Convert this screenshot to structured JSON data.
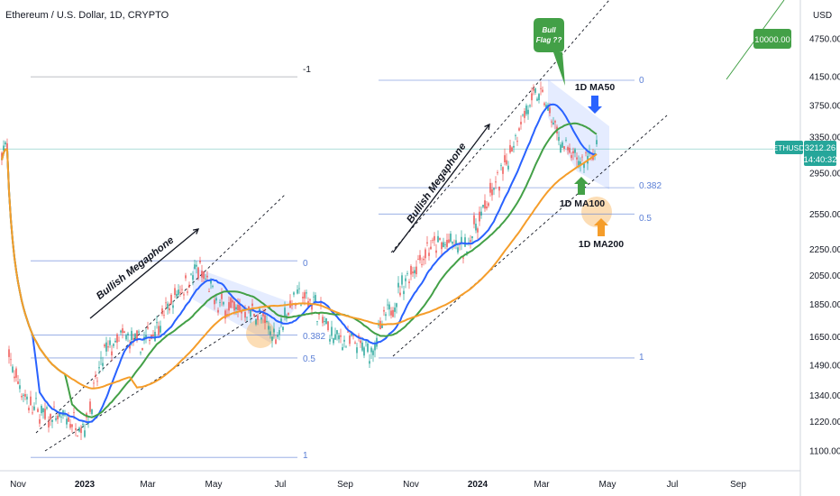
{
  "header": {
    "title": "Ethereum / U.S. Dollar, 1D, CRYPTO"
  },
  "price_axis": {
    "unit_label": "USD",
    "symbol": "ETHUSD",
    "last_price": "3212.26",
    "countdown": "14:40:32",
    "target_price": "10000.00"
  },
  "annotations": {
    "megaphone_left": "Bullish Megaphone",
    "megaphone_right": "Bullish Megaphone",
    "bull_flag_line1": "Bull",
    "bull_flag_line2": "Flag ??",
    "ma50_label": "1D MA50",
    "ma100_label": "1D MA100",
    "ma200_label": "1D MA200"
  },
  "fib_left": {
    "level_minus1": "-1",
    "level_0": "0",
    "level_0382": "0.382",
    "level_05": "0.5",
    "level_1": "1"
  },
  "fib_right": {
    "level_0": "0",
    "level_0382": "0.382",
    "level_05": "0.5",
    "level_1": "1"
  },
  "colors": {
    "candle_up": "#26a69a",
    "candle_down": "#ef5350",
    "ma50": "#2962ff",
    "ma100": "#43a047",
    "ma200": "#f59d2a",
    "fib": "#5b7fd6",
    "accent_green": "#43a047"
  },
  "chart_data": {
    "type": "candlestick",
    "symbol": "ETHUSD",
    "title": "Ethereum / U.S. Dollar, 1D, CRYPTO",
    "y_axis": {
      "scale": "log",
      "unit": "USD",
      "ticks": [
        1100,
        1220,
        1340,
        1490,
        1650,
        1850,
        2050,
        2250,
        2550,
        2950,
        3350,
        3750,
        4150,
        4750
      ]
    },
    "x_axis": {
      "ticks": [
        "Nov",
        "2023",
        "Mar",
        "May",
        "Jul",
        "Sep",
        "Nov",
        "2024",
        "Mar",
        "May",
        "Jul",
        "Sep"
      ]
    },
    "price_path": [
      [
        "Nov",
        1520
      ],
      [
        "Nov",
        1300
      ],
      [
        "Dec",
        1240
      ],
      [
        "Dec",
        1230
      ],
      [
        "2023",
        1200
      ],
      [
        "Jan",
        1550
      ],
      [
        "Feb",
        1650
      ],
      [
        "Mar",
        1600
      ],
      [
        "Mar",
        1750
      ],
      [
        "Apr",
        1950
      ],
      [
        "Apr",
        2100
      ],
      [
        "May",
        1850
      ],
      [
        "May",
        1820
      ],
      [
        "Jun",
        1800
      ],
      [
        "Jun",
        1650
      ],
      [
        "Jul",
        1900
      ],
      [
        "Jul",
        1880
      ],
      [
        "Aug",
        1650
      ],
      [
        "Sep",
        1620
      ],
      [
        "Oct",
        1560
      ],
      [
        "Oct",
        1800
      ],
      [
        "Nov",
        2050
      ],
      [
        "Dec",
        2250
      ],
      [
        "2024",
        2300
      ],
      [
        "Jan",
        2250
      ],
      [
        "Feb",
        2600
      ],
      [
        "Feb",
        2950
      ],
      [
        "Mar",
        3600
      ],
      [
        "Mar",
        3950
      ],
      [
        "Apr",
        3300
      ],
      [
        "Apr",
        3050
      ],
      [
        "May",
        3212
      ]
    ],
    "moving_averages": [
      {
        "name": "1D MA50",
        "color": "#2962ff"
      },
      {
        "name": "1D MA100",
        "color": "#43a047"
      },
      {
        "name": "1D MA200",
        "color": "#f59d2a"
      }
    ],
    "fib_levels_left": [
      {
        "label": "-1",
        "price": 4150
      },
      {
        "label": "0",
        "price": 2160
      },
      {
        "label": "0.382",
        "price": 1660
      },
      {
        "label": "0.5",
        "price": 1530
      },
      {
        "label": "1",
        "price": 1075
      }
    ],
    "fib_levels_right": [
      {
        "label": "0",
        "price": 4100
      },
      {
        "label": "0.382",
        "price": 2800
      },
      {
        "label": "0.5",
        "price": 2550
      },
      {
        "label": "1",
        "price": 1530
      }
    ],
    "last_price": 3212.26,
    "target": 10000
  }
}
